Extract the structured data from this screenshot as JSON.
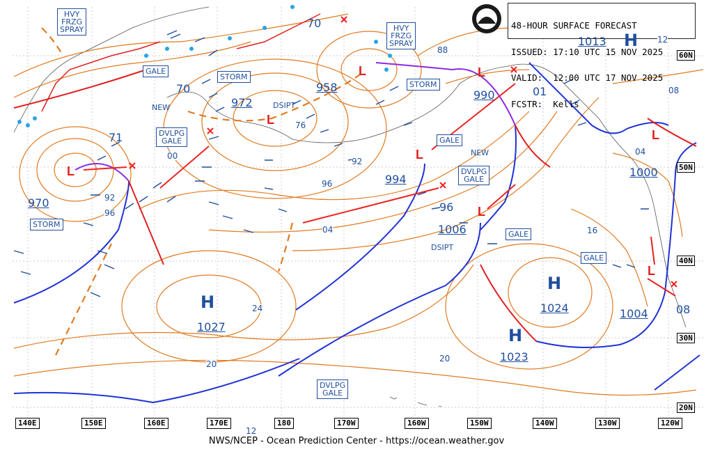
{
  "header": {
    "line1": "48-HOUR SURFACE FORECAST",
    "line2": "ISSUED: 17:10 UTC 15 NOV 2025",
    "line3": "VALID:  12:00 UTC 17 NOV 2025",
    "line4": "FCSTR:  Kells"
  },
  "logo_text": "NOAA",
  "footer": "NWS/NCEP - Ocean Prediction Center - https://ocean.weather.gov",
  "longitudes": [
    "140E",
    "150E",
    "160E",
    "170E",
    "180",
    "170W",
    "160W",
    "150W",
    "140W",
    "130W",
    "120W"
  ],
  "latitudes": [
    "60N",
    "50N",
    "40N",
    "30N",
    "20N"
  ],
  "boxes": {
    "hvy1": [
      "HVY",
      "FRZG",
      "SPRAY"
    ],
    "hvy2": [
      "HVY",
      "FRZG",
      "SPRAY"
    ],
    "gale1": "GALE",
    "storm1": "STORM",
    "storm2": "STORM",
    "dvlpg1": [
      "DVLPG",
      "GALE"
    ],
    "storm3": "STORM",
    "gale2": "GALE",
    "dvlpg2": [
      "DVLPG",
      "GALE"
    ],
    "gale3": "GALE",
    "gale4": "GALE",
    "dvlpg3": [
      "DVLPG",
      "GALE"
    ]
  },
  "pressures": {
    "p970": "970",
    "p972": "972",
    "p958": "958",
    "p990": "990",
    "p994": "994",
    "p1006": "1006",
    "p1000": "1000",
    "p1004": "1004",
    "p1013": "1013"
  },
  "highs": {
    "h1": "1027",
    "h2": "1024",
    "h3": "1023"
  },
  "contour_labels": [
    "70",
    "70",
    "71",
    "00",
    "92",
    "96",
    "76",
    "92",
    "96",
    "04",
    "88",
    "01",
    "08",
    "04",
    "16",
    "24",
    "20",
    "20",
    "08",
    "12",
    "12"
  ],
  "notes": {
    "new1": "NEW",
    "new2": "NEW",
    "dsipt1": "DSIPT",
    "dsipt2": "DSIPT"
  },
  "colors": {
    "isobar": "#e07a1f",
    "cold_front": "#1f32d6",
    "warm_front": "#e02020",
    "occluded": "#8a2be2",
    "text": "#1f4e9c",
    "track": "#ee2222",
    "ice": "#29a3e8"
  }
}
